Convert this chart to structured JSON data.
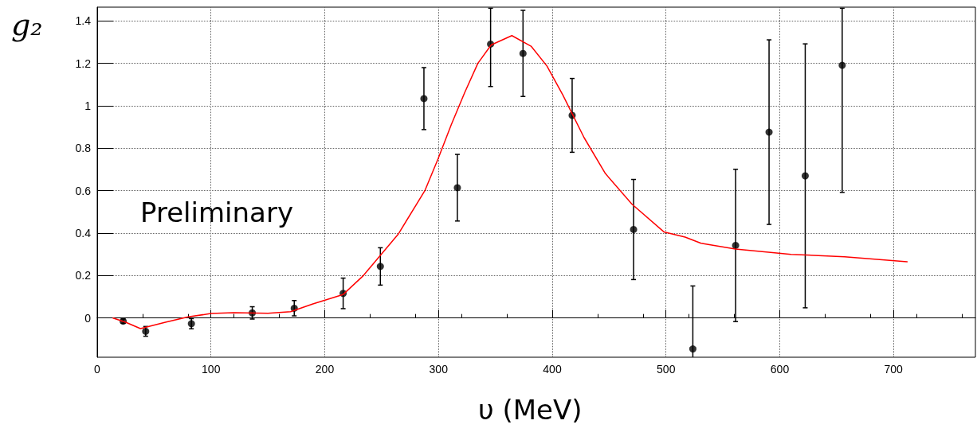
{
  "chart_data": {
    "type": "scatter",
    "ylabel": "g₂",
    "xlabel": "υ (MeV)",
    "annotations": [
      "Preliminary"
    ],
    "xlim": [
      0,
      772
    ],
    "xticks": [
      0,
      100,
      200,
      300,
      400,
      500,
      600,
      700
    ],
    "ylim": [
      -0.185,
      1.465
    ],
    "yticks": [
      0,
      0.2,
      0.4,
      0.6,
      0.8,
      1,
      1.2,
      1.4
    ],
    "grid": true,
    "series": [
      {
        "color": "#000000",
        "marker": "circle",
        "x": [
          22.8,
          42.6,
          82.8,
          136.3,
          173.2,
          216.2,
          248.9,
          287.2,
          316.6,
          345.8,
          374.3,
          417.5,
          471.5,
          523.6,
          561.2,
          590.6,
          622.4,
          654.9
        ],
        "values": [
          -0.015,
          -0.063,
          -0.027,
          0.024,
          0.046,
          0.116,
          0.243,
          1.034,
          0.614,
          1.291,
          1.247,
          0.955,
          0.417,
          -0.146,
          0.342,
          0.876,
          0.67,
          1.191
        ],
        "errors": [
          0.01,
          0.023,
          0.024,
          0.029,
          0.036,
          0.072,
          0.088,
          0.146,
          0.157,
          [
            1.091,
            1.46
          ],
          0.203,
          0.174,
          0.236,
          0.297,
          0.359,
          0.435,
          0.622,
          [
            0.592,
            1.46
          ]
        ]
      },
      {
        "type": "line",
        "color": "#ff0000",
        "marker": "none",
        "line_style": "solid",
        "x": [
          13.9,
          25,
          38,
          60,
          80,
          100,
          120,
          150,
          170,
          189.6,
          216,
          234,
          264.5,
          288,
          299.6,
          311.3,
          323,
          334.6,
          346.3,
          364.5,
          381.4,
          395.4,
          409.4,
          428,
          446.7,
          470,
          498.1,
          516.8,
          530.8,
          561,
          610,
          657,
          712
        ],
        "values": [
          0,
          -0.02,
          -0.05,
          -0.02,
          0.005,
          0.021,
          0.025,
          0.022,
          0.03,
          0.066,
          0.11,
          0.2,
          0.394,
          0.6,
          0.75,
          0.912,
          1.062,
          1.2,
          1.287,
          1.331,
          1.281,
          1.187,
          1.05,
          0.85,
          0.681,
          0.537,
          0.406,
          0.381,
          0.352,
          0.325,
          0.3,
          0.288,
          0.265
        ]
      }
    ]
  }
}
